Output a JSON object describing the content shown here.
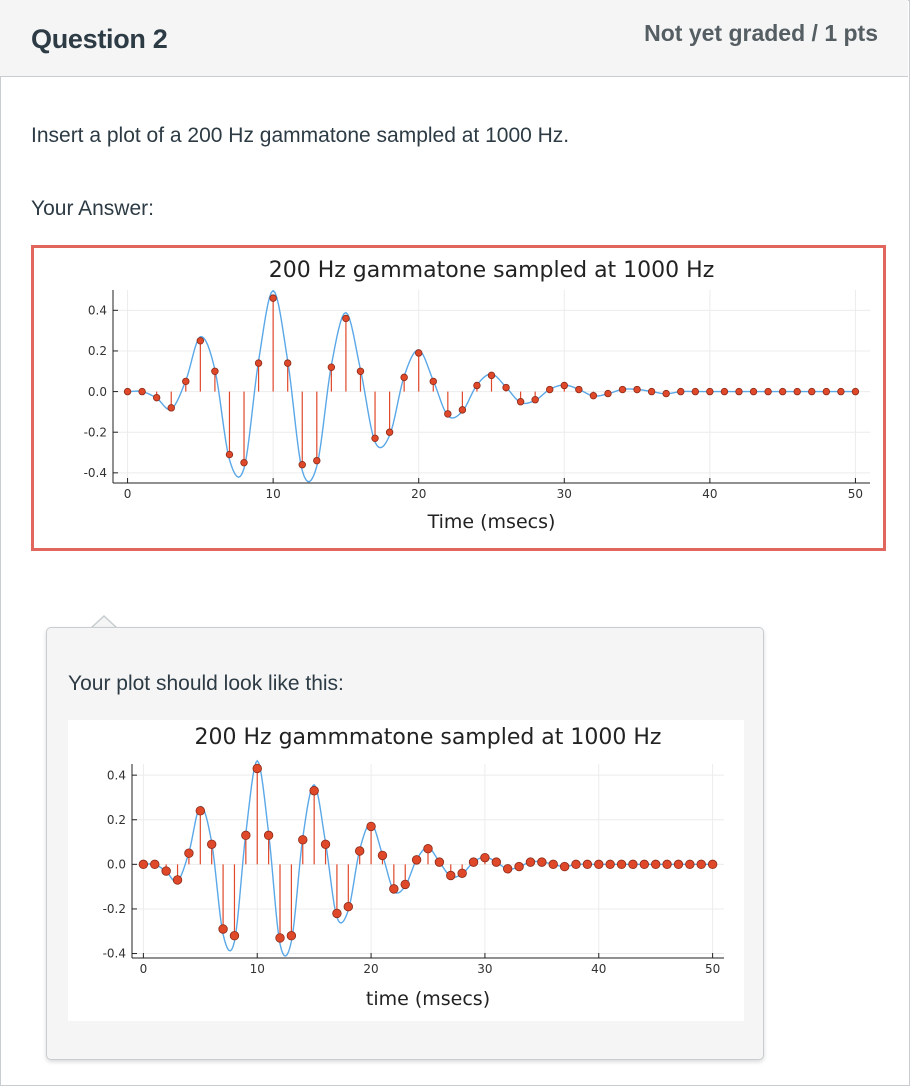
{
  "question": {
    "title": "Question 2",
    "points": "Not yet graded / 1 pts",
    "prompt": "Insert a plot of a 200 Hz gammatone sampled at 1000 Hz.",
    "answer_label": "Your Answer:"
  },
  "popover": {
    "text": "Your plot should look like this:"
  },
  "colors": {
    "curve": "#5aa8e8",
    "stem": "#e0482a",
    "marker_fill": "#e0482a",
    "marker_edge": "#8a2a18",
    "answer_border": "#e0665e"
  },
  "chart_data": [
    {
      "type": "line",
      "title": "200 Hz gammatone sampled at 1000 Hz",
      "xlabel": "Time (msecs)",
      "ylabel": "",
      "xlim": [
        -1,
        51
      ],
      "ylim": [
        -0.45,
        0.5
      ],
      "xticks": [
        0,
        10,
        20,
        30,
        40,
        50
      ],
      "yticks": [
        0.4,
        0.2,
        0.0,
        -0.2,
        -0.4
      ],
      "ytick_labels": [
        "0.4",
        "0.2",
        "0.0",
        "-0.2",
        "-0.4"
      ],
      "grid": true,
      "samples_x": [
        0,
        1,
        2,
        3,
        4,
        5,
        6,
        7,
        8,
        9,
        10,
        11,
        12,
        13,
        14,
        15,
        16,
        17,
        18,
        19,
        20,
        21,
        22,
        23,
        24,
        25,
        26,
        27,
        28,
        29,
        30,
        31,
        32,
        33,
        34,
        35,
        36,
        37,
        38,
        39,
        40,
        41,
        42,
        43,
        44,
        45,
        46,
        47,
        48,
        49,
        50
      ],
      "samples_y": [
        0,
        0,
        -0.03,
        -0.08,
        0.05,
        0.25,
        0.1,
        -0.31,
        -0.35,
        0.14,
        0.46,
        0.14,
        -0.36,
        -0.34,
        0.12,
        0.36,
        0.1,
        -0.23,
        -0.2,
        0.07,
        0.19,
        0.05,
        -0.11,
        -0.09,
        0.03,
        0.08,
        0.02,
        -0.05,
        -0.04,
        0.01,
        0.03,
        0.01,
        -0.02,
        -0.01,
        0.01,
        0.01,
        0,
        -0.01,
        0,
        0,
        0,
        0,
        0,
        0,
        0,
        0,
        0,
        0,
        0,
        0,
        0
      ]
    },
    {
      "type": "line",
      "title": "200 Hz gammmatone sampled at 1000 Hz",
      "xlabel": "time (msecs)",
      "ylabel": "",
      "xlim": [
        -1,
        51
      ],
      "ylim": [
        -0.42,
        0.45
      ],
      "xticks": [
        0,
        10,
        20,
        30,
        40,
        50
      ],
      "yticks": [
        0.4,
        0.2,
        0.0,
        -0.2,
        -0.4
      ],
      "ytick_labels": [
        "0.4",
        "0.2",
        "0.0",
        "-0.2",
        "-0.4"
      ],
      "grid": true,
      "samples_x": [
        0,
        1,
        2,
        3,
        4,
        5,
        6,
        7,
        8,
        9,
        10,
        11,
        12,
        13,
        14,
        15,
        16,
        17,
        18,
        19,
        20,
        21,
        22,
        23,
        24,
        25,
        26,
        27,
        28,
        29,
        30,
        31,
        32,
        33,
        34,
        35,
        36,
        37,
        38,
        39,
        40,
        41,
        42,
        43,
        44,
        45,
        46,
        47,
        48,
        49,
        50
      ],
      "samples_y": [
        0,
        0,
        -0.03,
        -0.07,
        0.05,
        0.24,
        0.09,
        -0.29,
        -0.32,
        0.13,
        0.43,
        0.13,
        -0.33,
        -0.32,
        0.11,
        0.33,
        0.09,
        -0.22,
        -0.19,
        0.06,
        0.17,
        0.04,
        -0.11,
        -0.09,
        0.02,
        0.07,
        0.01,
        -0.05,
        -0.04,
        0.01,
        0.03,
        0.01,
        -0.02,
        -0.01,
        0.01,
        0.01,
        0,
        -0.01,
        0,
        0,
        0,
        0,
        0,
        0,
        0,
        0,
        0,
        0,
        0,
        0,
        0
      ]
    }
  ]
}
